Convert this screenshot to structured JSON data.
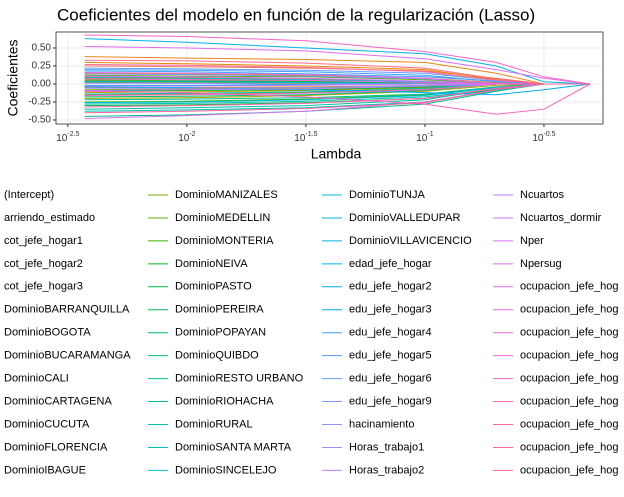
{
  "chart_data": {
    "type": "line",
    "title": "Coeficientes del modelo en función de la regularización (Lasso)",
    "x_label": "Lambda",
    "y_label": "Coeficientes",
    "log_x": true,
    "grid": true,
    "x": [
      0.00372,
      0.01,
      0.03162,
      0.1,
      0.1995,
      0.3162,
      0.4943
    ],
    "xlim": [
      0.00282,
      0.5598
    ],
    "xticks": [
      {
        "value": 0.003162,
        "label": "10^-2.5"
      },
      {
        "value": 0.01,
        "label": "10^-2"
      },
      {
        "value": 0.03162,
        "label": "10^-1.5"
      },
      {
        "value": 0.1,
        "label": "10^-1"
      },
      {
        "value": 0.3162,
        "label": "10^-0.5"
      }
    ],
    "ylim": [
      -0.556,
      0.722
    ],
    "yticks": [
      {
        "value": 0.5,
        "label": "0.50"
      },
      {
        "value": 0.25,
        "label": "0.25"
      },
      {
        "value": 0,
        "label": "0.00"
      },
      {
        "value": -0.25,
        "label": "-0.25"
      },
      {
        "value": -0.5,
        "label": "-0.50"
      }
    ],
    "series": [
      {
        "name": "(Intercept)",
        "color": "#F8766D",
        "values": [
          0.05,
          0.04,
          0.03,
          0.01,
          0,
          0,
          0
        ]
      },
      {
        "name": "arriendo_estimado",
        "color": "#F37B59",
        "values": [
          0.25,
          0.24,
          0.22,
          0.18,
          0.08,
          0,
          0
        ]
      },
      {
        "name": "cot_jefe_hogar1",
        "color": "#ED8141",
        "values": [
          0.1,
          0.09,
          0.07,
          0.03,
          0,
          0,
          0
        ]
      },
      {
        "name": "cot_jefe_hogar2",
        "color": "#E7861B",
        "values": [
          0.38,
          0.36,
          0.34,
          0.3,
          0.15,
          0,
          0
        ]
      },
      {
        "name": "cot_jefe_hogar3",
        "color": "#E08B00",
        "values": [
          0.3,
          0.28,
          0.25,
          0.2,
          0.06,
          0,
          0
        ]
      },
      {
        "name": "DominioBARRANQUILLA",
        "color": "#D89000",
        "values": [
          -0.05,
          -0.05,
          -0.04,
          -0.02,
          0,
          0,
          0
        ]
      },
      {
        "name": "DominioBOGOTA",
        "color": "#CF9400",
        "values": [
          0.15,
          0.14,
          0.12,
          0.08,
          0.02,
          0,
          0
        ]
      },
      {
        "name": "DominioBUCARAMANGA",
        "color": "#C59900",
        "values": [
          0.08,
          0.07,
          0.05,
          0.02,
          0,
          0,
          0
        ]
      },
      {
        "name": "DominioCALI",
        "color": "#BB9D00",
        "values": [
          -0.12,
          -0.11,
          -0.09,
          -0.05,
          0,
          0,
          0
        ]
      },
      {
        "name": "DominioCARTAGENA",
        "color": "#AFA100",
        "values": [
          -0.2,
          -0.19,
          -0.16,
          -0.1,
          -0.02,
          0,
          0
        ]
      },
      {
        "name": "DominioCUCUTA",
        "color": "#A3A500",
        "values": [
          -0.15,
          -0.14,
          -0.12,
          -0.07,
          0,
          0,
          0
        ]
      },
      {
        "name": "DominioFLORENCIA",
        "color": "#95A900",
        "values": [
          -0.08,
          -0.07,
          -0.06,
          -0.03,
          0,
          0,
          0
        ]
      },
      {
        "name": "DominioIBAGUE",
        "color": "#85AD00",
        "values": [
          0.02,
          0.02,
          0.01,
          0,
          0,
          0,
          0
        ]
      },
      {
        "name": "DominioMANIZALES",
        "color": "#72B000",
        "values": [
          0.06,
          0.05,
          0.04,
          0.01,
          0,
          0,
          0
        ]
      },
      {
        "name": "DominioMEDELLIN",
        "color": "#5BB300",
        "values": [
          0.12,
          0.11,
          0.1,
          0.06,
          0,
          0,
          0
        ]
      },
      {
        "name": "DominioMONTERIA",
        "color": "#39B600",
        "values": [
          -0.25,
          -0.24,
          -0.21,
          -0.15,
          -0.05,
          0,
          0
        ]
      },
      {
        "name": "DominioNEIVA",
        "color": "#00B81F",
        "values": [
          -0.1,
          -0.09,
          -0.08,
          -0.04,
          0,
          0,
          0
        ]
      },
      {
        "name": "DominioPASTO",
        "color": "#00BA42",
        "values": [
          -0.3,
          -0.29,
          -0.26,
          -0.2,
          -0.08,
          0,
          0
        ]
      },
      {
        "name": "DominioPEREIRA",
        "color": "#00BC59",
        "values": [
          0.04,
          0.04,
          0.03,
          0.01,
          0,
          0,
          0
        ]
      },
      {
        "name": "DominioPOPAYAN",
        "color": "#00BD6D",
        "values": [
          -0.18,
          -0.17,
          -0.15,
          -0.09,
          0,
          0,
          0
        ]
      },
      {
        "name": "DominioQUIBDO",
        "color": "#00BF7D",
        "values": [
          -0.45,
          -0.43,
          -0.38,
          -0.28,
          -0.1,
          0,
          0
        ]
      },
      {
        "name": "DominioRESTO URBANO",
        "color": "#00C08D",
        "values": [
          -0.22,
          -0.21,
          -0.19,
          -0.14,
          -0.04,
          0,
          0
        ]
      },
      {
        "name": "DominioRIOHACHA",
        "color": "#00C19C",
        "values": [
          -0.35,
          -0.33,
          -0.3,
          -0.22,
          -0.06,
          0,
          0
        ]
      },
      {
        "name": "DominioRURAL",
        "color": "#00C1AA",
        "values": [
          -0.28,
          -0.27,
          -0.24,
          -0.18,
          -0.07,
          0,
          0
        ]
      },
      {
        "name": "DominioSANTA MARTA",
        "color": "#00C0B8",
        "values": [
          -0.14,
          -0.13,
          -0.11,
          -0.06,
          0,
          0,
          0
        ]
      },
      {
        "name": "DominioSINCELEJO",
        "color": "#00BFC4",
        "values": [
          -0.38,
          -0.36,
          -0.33,
          -0.25,
          -0.09,
          0,
          0
        ]
      },
      {
        "name": "DominioTUNJA",
        "color": "#00BDD0",
        "values": [
          0.09,
          0.08,
          0.06,
          0.03,
          0,
          0,
          0
        ]
      },
      {
        "name": "DominioVALLEDUPAR",
        "color": "#00BADB",
        "values": [
          -0.26,
          -0.25,
          -0.22,
          -0.16,
          -0.05,
          0,
          0
        ]
      },
      {
        "name": "DominioVILLAVICENCIO",
        "color": "#00B7E5",
        "values": [
          0.03,
          0.03,
          0.02,
          0,
          0,
          0,
          0
        ]
      },
      {
        "name": "edad_jefe_hogar",
        "color": "#00B2EE",
        "values": [
          0.63,
          0.58,
          0.5,
          0.42,
          0.25,
          0.03,
          0
        ]
      },
      {
        "name": "edu_jefe_hogar2",
        "color": "#00ADF6",
        "values": [
          -0.04,
          -0.05,
          -0.08,
          -0.12,
          -0.15,
          -0.08,
          0
        ]
      },
      {
        "name": "edu_jefe_hogar3",
        "color": "#00A7FF",
        "values": [
          -0.02,
          -0.02,
          -0.01,
          0,
          0,
          0,
          0
        ]
      },
      {
        "name": "edu_jefe_hogar4",
        "color": "#35A2FF",
        "values": [
          0.18,
          0.17,
          0.14,
          0.1,
          0.04,
          0,
          0
        ]
      },
      {
        "name": "edu_jefe_hogar5",
        "color": "#4A9FFF",
        "values": [
          0.2,
          0.19,
          0.17,
          0.12,
          0.03,
          0,
          0
        ]
      },
      {
        "name": "edu_jefe_hogar6",
        "color": "#5F9CFF",
        "values": [
          0.22,
          0.21,
          0.19,
          0.15,
          0.05,
          0,
          0
        ]
      },
      {
        "name": "edu_jefe_hogar9",
        "color": "#7997FF",
        "values": [
          0.14,
          0.13,
          0.11,
          0.07,
          0.01,
          0,
          0
        ]
      },
      {
        "name": "hacinamiento",
        "color": "#8F91FF",
        "values": [
          -0.06,
          -0.06,
          -0.05,
          -0.02,
          0,
          0,
          0
        ]
      },
      {
        "name": "Horas_trabajo1",
        "color": "#A18AFF",
        "values": [
          0.01,
          0.01,
          0,
          0,
          0,
          0,
          0
        ]
      },
      {
        "name": "Horas_trabajo2",
        "color": "#B183FF",
        "values": [
          -0.09,
          -0.08,
          -0.07,
          -0.03,
          0,
          0,
          0
        ]
      },
      {
        "name": "Ncuartos",
        "color": "#BF7DFF",
        "values": [
          -0.03,
          -0.03,
          -0.02,
          0,
          0,
          0,
          0
        ]
      },
      {
        "name": "Ncuartos_dormir",
        "color": "#CB77FB",
        "values": [
          0.11,
          0.1,
          0.08,
          0.04,
          0,
          0,
          0
        ]
      },
      {
        "name": "Nper",
        "color": "#D572F5",
        "values": [
          -0.48,
          -0.44,
          -0.38,
          -0.25,
          -0.08,
          0,
          0
        ]
      },
      {
        "name": "Npersug",
        "color": "#DF6DEE",
        "values": [
          0.52,
          0.5,
          0.46,
          0.35,
          0.2,
          0.08,
          0
        ]
      },
      {
        "name": "ocupacion_jefe_hog",
        "color": "#E76AE6",
        "values": [
          0.07,
          0.06,
          0.05,
          0.02,
          0,
          0,
          0
        ]
      },
      {
        "name": "ocupacion_jefe_hog",
        "color": "#EE67DD",
        "values": [
          0.16,
          0.15,
          0.13,
          0.08,
          0.01,
          0,
          0
        ]
      },
      {
        "name": "ocupacion_jefe_hog",
        "color": "#F464D3",
        "values": [
          -0.16,
          -0.15,
          -0.13,
          -0.08,
          0,
          0,
          0
        ]
      },
      {
        "name": "ocupacion_jefe_hog",
        "color": "#F863C8",
        "values": [
          0.68,
          0.66,
          0.6,
          0.45,
          0.3,
          0.1,
          0
        ]
      },
      {
        "name": "ocupacion_jefe_hog",
        "color": "#FB63BC",
        "values": [
          -0.1,
          -0.12,
          -0.18,
          -0.28,
          -0.42,
          -0.35,
          0
        ]
      },
      {
        "name": "ocupacion_jefe_hog",
        "color": "#FD64B0",
        "values": [
          -0.32,
          -0.3,
          -0.27,
          -0.2,
          -0.06,
          0,
          0
        ]
      },
      {
        "name": "ocupacion_jefe_hog",
        "color": "#FE66A3",
        "values": [
          0.27,
          0.26,
          0.23,
          0.17,
          0.05,
          0,
          0
        ]
      },
      {
        "name": "ocupacion_jefe_hog",
        "color": "#FD6896",
        "values": [
          -0.4,
          -0.38,
          -0.34,
          -0.26,
          -0.08,
          0,
          0
        ]
      },
      {
        "name": "ocupacion_jefe_hog",
        "color": "#FB6D89",
        "values": [
          0.33,
          0.32,
          0.29,
          0.22,
          0.07,
          0,
          0
        ]
      }
    ]
  }
}
